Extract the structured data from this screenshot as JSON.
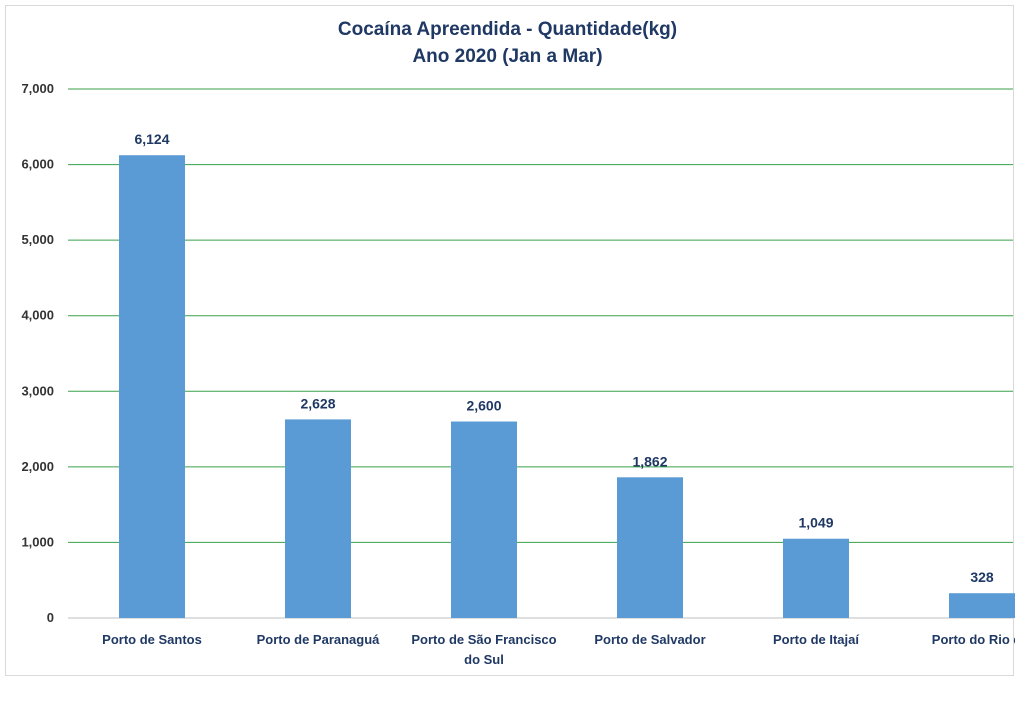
{
  "chart_data": {
    "type": "bar",
    "title": "Cocaína Apreendida - Quantidade(kg)",
    "subtitle": "Ano 2020 (Jan a Mar)",
    "xlabel": "",
    "ylabel": "",
    "categories": [
      "Porto de Santos",
      "Porto de Paranaguá",
      "Porto de São Francisco do Sul",
      "Porto de Salvador",
      "Porto de Itajaí",
      "Porto do Rio de."
    ],
    "values": [
      6124,
      2628,
      2600,
      1862,
      1049,
      328
    ],
    "data_labels": [
      "6,124",
      "2,628",
      "2,600",
      "1,862",
      "1,049",
      "328"
    ],
    "ylim": [
      0,
      7000
    ],
    "y_ticks": [
      0,
      1000,
      2000,
      3000,
      4000,
      5000,
      6000,
      7000
    ],
    "y_tick_labels": [
      "0",
      "1,000",
      "2,000",
      "3,000",
      "4,000",
      "5,000",
      "6,000",
      "7,000"
    ],
    "grid": true,
    "legend": "none",
    "colors": {
      "bar": "#5b9bd5",
      "grid": "#3aa04a",
      "title": "#1f3864",
      "text": "#1f3864"
    }
  }
}
